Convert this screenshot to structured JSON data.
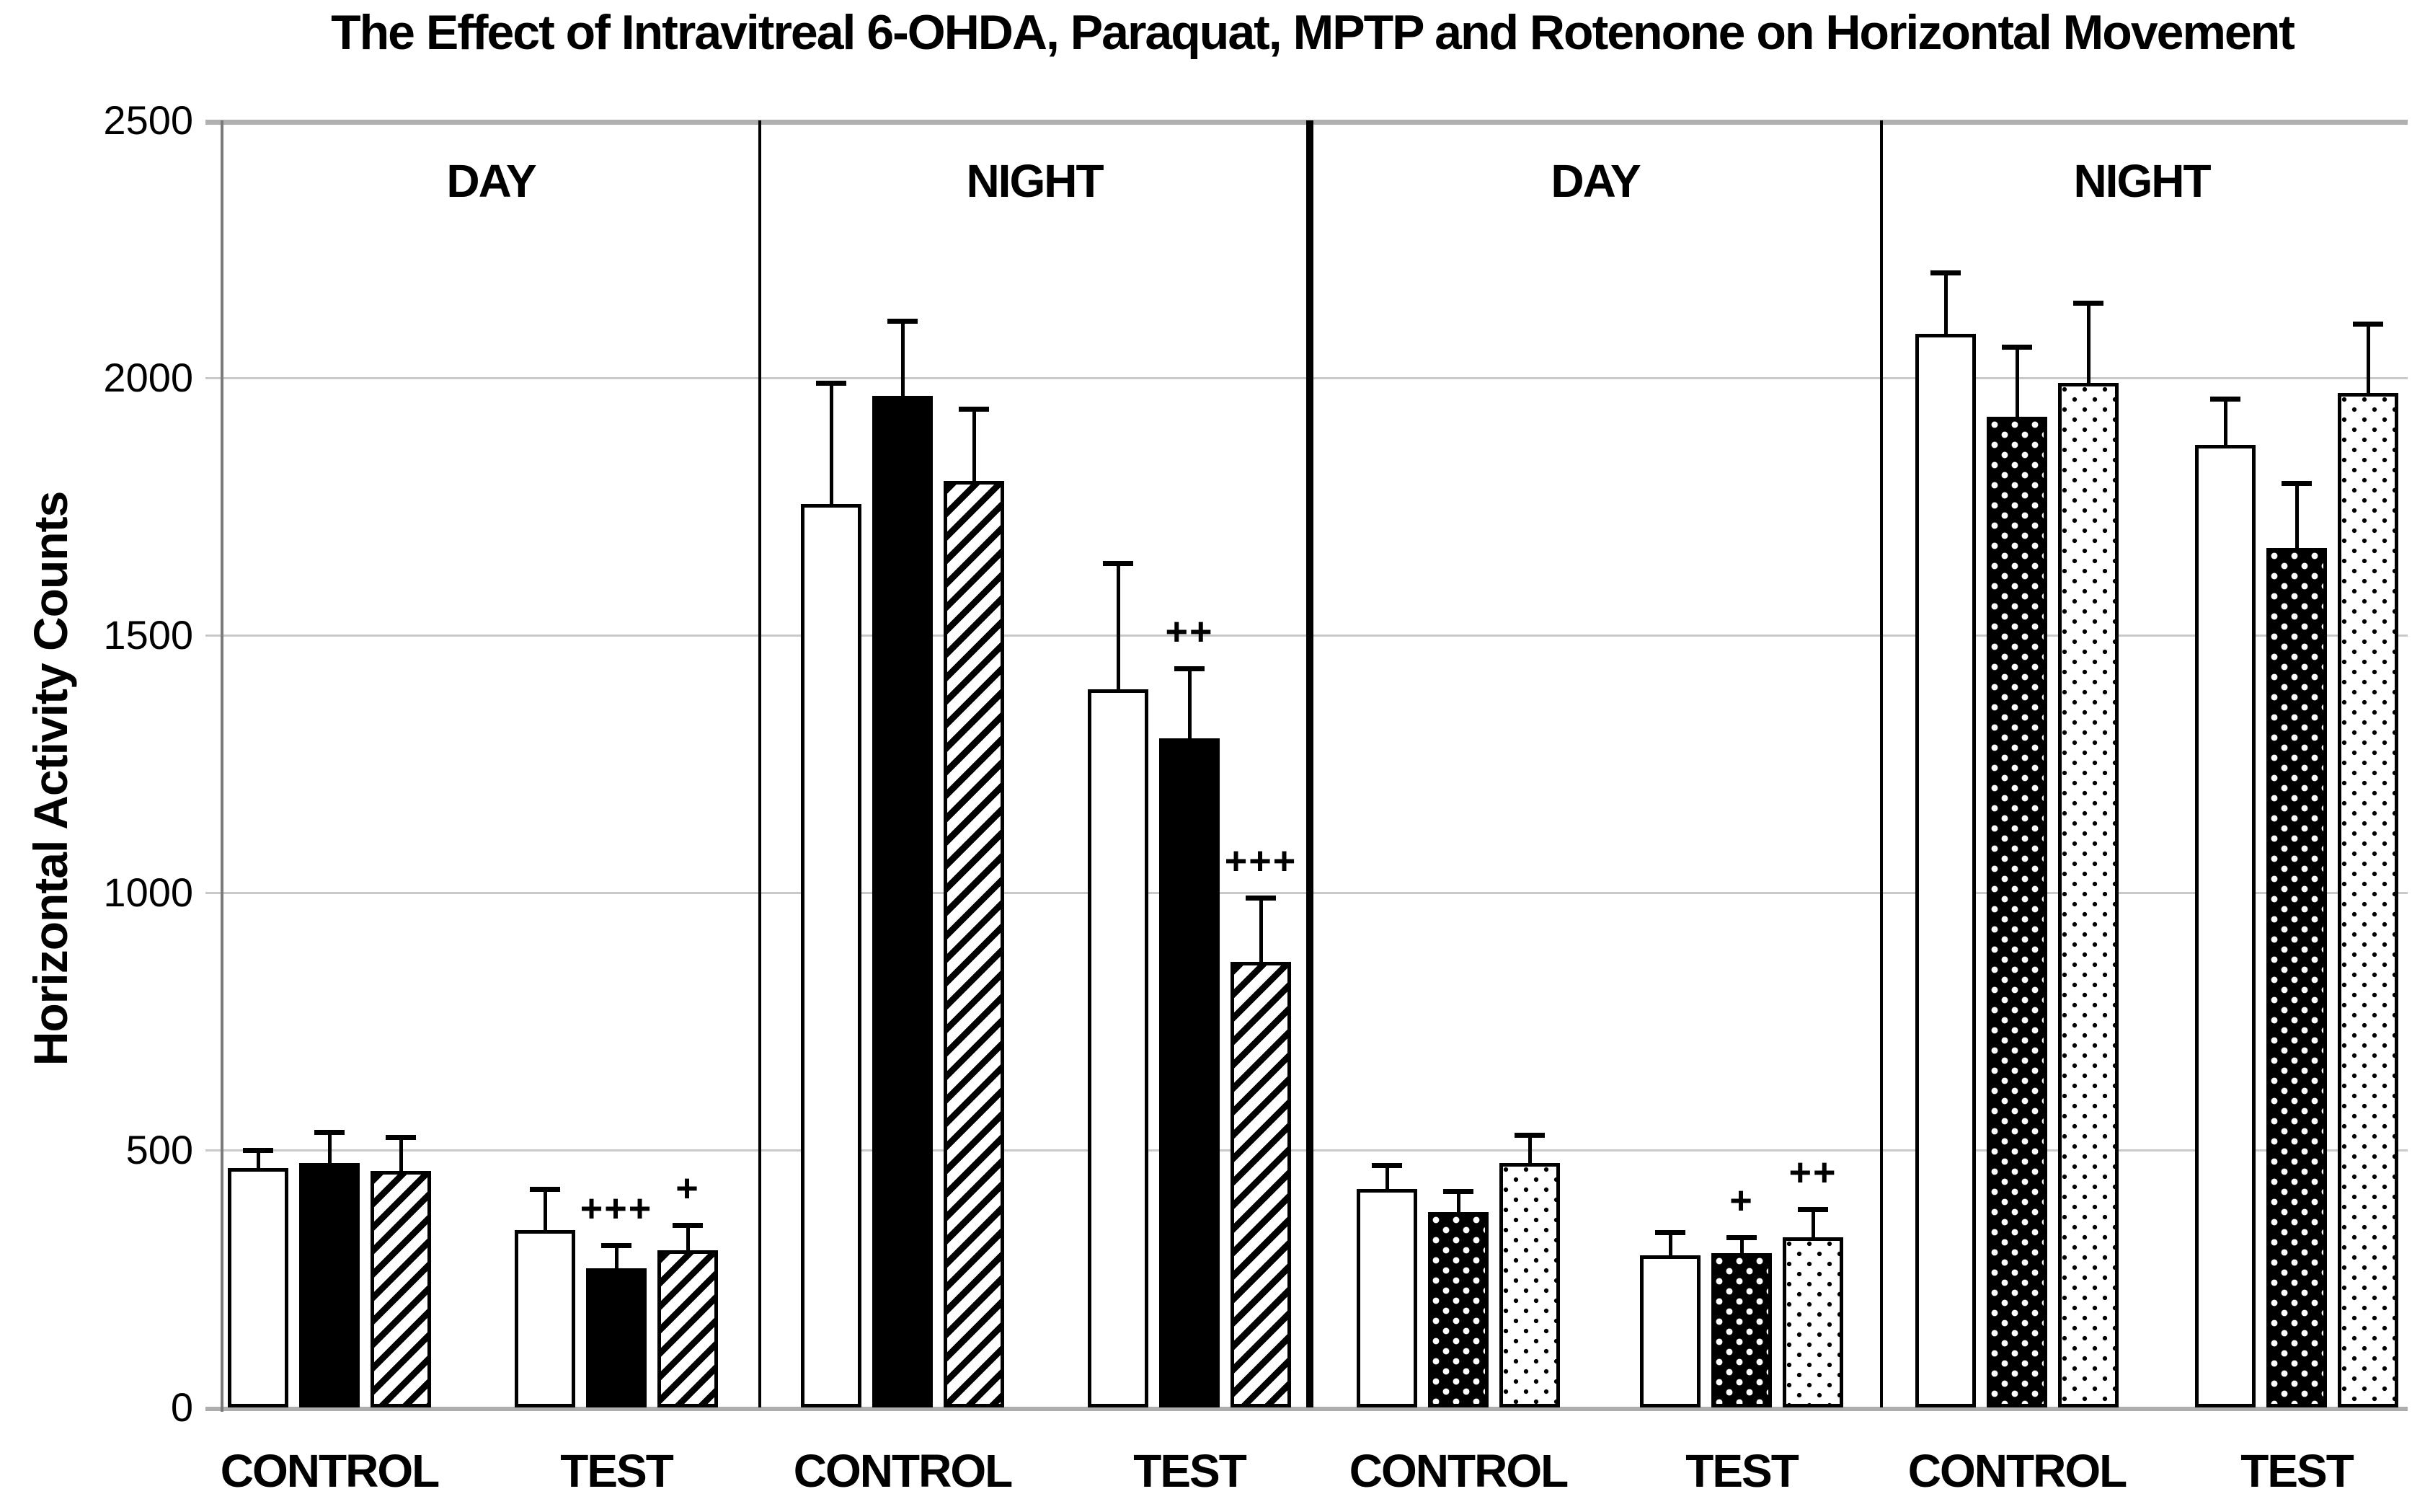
{
  "title": "The Effect of Intravitreal 6-OHDA, Paraquat, MPTP and Rotenone on Horizontal Movement",
  "y_axis": {
    "label": "Horizontal Activity Counts",
    "tick_labels": [
      "0",
      "500",
      "1000",
      "1500",
      "2000",
      "2500"
    ]
  },
  "chart_data": {
    "type": "bar",
    "title": "The Effect of Intravitreal 6-OHDA, Paraquat, MPTP and Rotenone on Horizontal Movement",
    "xlabel": "",
    "ylabel": "Horizontal Activity Counts",
    "ylim": [
      0,
      2500
    ],
    "yticks": [
      0,
      500,
      1000,
      1500,
      2000,
      2500
    ],
    "grid": "horizontal-light-gray",
    "legend": "none",
    "bar_patterns_left_half": [
      "open-white",
      "solid-black",
      "diagonal-hatch"
    ],
    "bar_patterns_right_half": [
      "open-white",
      "black-with-white-dots",
      "white-with-black-dots"
    ],
    "sections": [
      {
        "period": "DAY",
        "groups": [
          {
            "label": "CONTROL",
            "bars": [
              {
                "pattern": "open",
                "value": 465,
                "err": 35,
                "annotation": ""
              },
              {
                "pattern": "solid",
                "value": 475,
                "err": 60,
                "annotation": ""
              },
              {
                "pattern": "hatch",
                "value": 460,
                "err": 65,
                "annotation": ""
              }
            ]
          },
          {
            "label": "TEST",
            "bars": [
              {
                "pattern": "open",
                "value": 345,
                "err": 80,
                "annotation": ""
              },
              {
                "pattern": "solid",
                "value": 270,
                "err": 45,
                "annotation": "+++"
              },
              {
                "pattern": "hatch",
                "value": 305,
                "err": 50,
                "annotation": "+"
              }
            ]
          }
        ]
      },
      {
        "period": "NIGHT",
        "groups": [
          {
            "label": "CONTROL",
            "bars": [
              {
                "pattern": "open",
                "value": 1755,
                "err": 235,
                "annotation": ""
              },
              {
                "pattern": "solid",
                "value": 1965,
                "err": 145,
                "annotation": ""
              },
              {
                "pattern": "hatch",
                "value": 1800,
                "err": 140,
                "annotation": ""
              }
            ]
          },
          {
            "label": "TEST",
            "bars": [
              {
                "pattern": "open",
                "value": 1395,
                "err": 245,
                "annotation": ""
              },
              {
                "pattern": "solid",
                "value": 1300,
                "err": 135,
                "annotation": "++"
              },
              {
                "pattern": "hatch",
                "value": 865,
                "err": 125,
                "annotation": "+++"
              }
            ]
          }
        ]
      },
      {
        "period": "DAY",
        "groups": [
          {
            "label": "CONTROL",
            "bars": [
              {
                "pattern": "open",
                "value": 425,
                "err": 45,
                "annotation": ""
              },
              {
                "pattern": "dots-black",
                "value": 380,
                "err": 40,
                "annotation": ""
              },
              {
                "pattern": "dots-white",
                "value": 475,
                "err": 55,
                "annotation": ""
              }
            ]
          },
          {
            "label": "TEST",
            "bars": [
              {
                "pattern": "open",
                "value": 295,
                "err": 45,
                "annotation": ""
              },
              {
                "pattern": "dots-black",
                "value": 300,
                "err": 30,
                "annotation": "+"
              },
              {
                "pattern": "dots-white",
                "value": 330,
                "err": 55,
                "annotation": "++"
              }
            ]
          }
        ]
      },
      {
        "period": "NIGHT",
        "groups": [
          {
            "label": "CONTROL",
            "bars": [
              {
                "pattern": "open",
                "value": 2085,
                "err": 120,
                "annotation": ""
              },
              {
                "pattern": "dots-black",
                "value": 1925,
                "err": 135,
                "annotation": ""
              },
              {
                "pattern": "dots-white",
                "value": 1990,
                "err": 155,
                "annotation": ""
              }
            ]
          },
          {
            "label": "TEST",
            "bars": [
              {
                "pattern": "open",
                "value": 1870,
                "err": 90,
                "annotation": ""
              },
              {
                "pattern": "dots-black",
                "value": 1670,
                "err": 125,
                "annotation": ""
              },
              {
                "pattern": "dots-white",
                "value": 1970,
                "err": 135,
                "annotation": ""
              }
            ]
          }
        ]
      }
    ]
  }
}
